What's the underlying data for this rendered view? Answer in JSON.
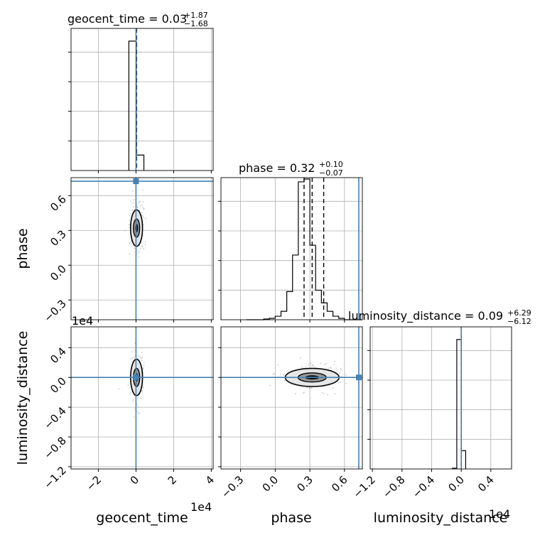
{
  "chart_data": {
    "type": "corner",
    "parameters": [
      "geocent_time",
      "phase",
      "luminosity_distance"
    ],
    "titles": {
      "geocent_time": {
        "label": "geocent_time = 0.03",
        "plus": "+1.87",
        "minus": "−1.68"
      },
      "phase": {
        "label": "phase = 0.32",
        "plus": "+0.10",
        "minus": "−0.07"
      },
      "luminosity_distance": {
        "label": "luminosity_distance = 0.09",
        "plus": "+6.29",
        "minus": "−6.12"
      }
    },
    "axis_labels": {
      "geocent_time": "geocent_time",
      "phase": "phase",
      "luminosity_distance": "luminosity_distance"
    },
    "offset_labels": {
      "geocent_time_x": "1e4",
      "luminosity_distance_x": "1e4",
      "luminosity_distance_y": "1e4"
    },
    "ranges": {
      "geocent_time": [
        -3.45,
        4.1
      ],
      "phase": [
        -0.47,
        0.755
      ],
      "luminosity_distance": [
        -1.23,
        0.68
      ]
    },
    "ticks": {
      "geocent_time": {
        "values": [
          -2,
          0,
          2,
          4
        ],
        "labels": [
          "−2",
          "0",
          "2",
          "4"
        ]
      },
      "phase": {
        "values": [
          -0.3,
          0.0,
          0.3,
          0.6
        ],
        "labels": [
          "−0.3",
          "0.0",
          "0.3",
          "0.6"
        ]
      },
      "luminosity_distance": {
        "values": [
          -1.2,
          -0.8,
          -0.4,
          0.0,
          0.4
        ],
        "labels": [
          "−1.2",
          "−0.8",
          "−0.4",
          "0.0",
          "0.4"
        ]
      }
    },
    "truths": {
      "geocent_time": 0.0,
      "phase": 0.724,
      "luminosity_distance": 0.0
    },
    "histograms": {
      "geocent_time": {
        "edges": [
          -0.38,
          0.02,
          0.42
        ],
        "counts": [
          0.92,
          0.11
        ],
        "quantiles": [
          0.03
        ]
      },
      "phase": {
        "edges": [
          -0.25,
          -0.2,
          -0.15,
          -0.1,
          -0.05,
          0.0,
          0.05,
          0.1,
          0.15,
          0.2,
          0.25,
          0.3,
          0.35,
          0.4,
          0.45,
          0.5,
          0.55,
          0.6,
          0.65,
          0.7,
          0.755
        ],
        "counts": [
          0.0,
          0.0,
          0.0,
          0.005,
          0.01,
          0.025,
          0.06,
          0.2,
          0.46,
          0.98,
          1.0,
          0.53,
          0.21,
          0.12,
          0.06,
          0.025,
          0.01,
          0.0,
          0.0,
          0.0
        ],
        "quantiles": [
          0.25,
          0.32,
          0.42
        ]
      },
      "luminosity_distance": {
        "edges": [
          -0.12,
          -0.06,
          0.0,
          0.06
        ],
        "counts": [
          0.005,
          0.92,
          0.13
        ],
        "quantiles": [
          0.0
        ]
      }
    },
    "grid": true,
    "colors": {
      "truth": "#4682b4",
      "hist": "#000000",
      "grid": "#b0b0b0",
      "points": "#9e9e9e"
    }
  }
}
